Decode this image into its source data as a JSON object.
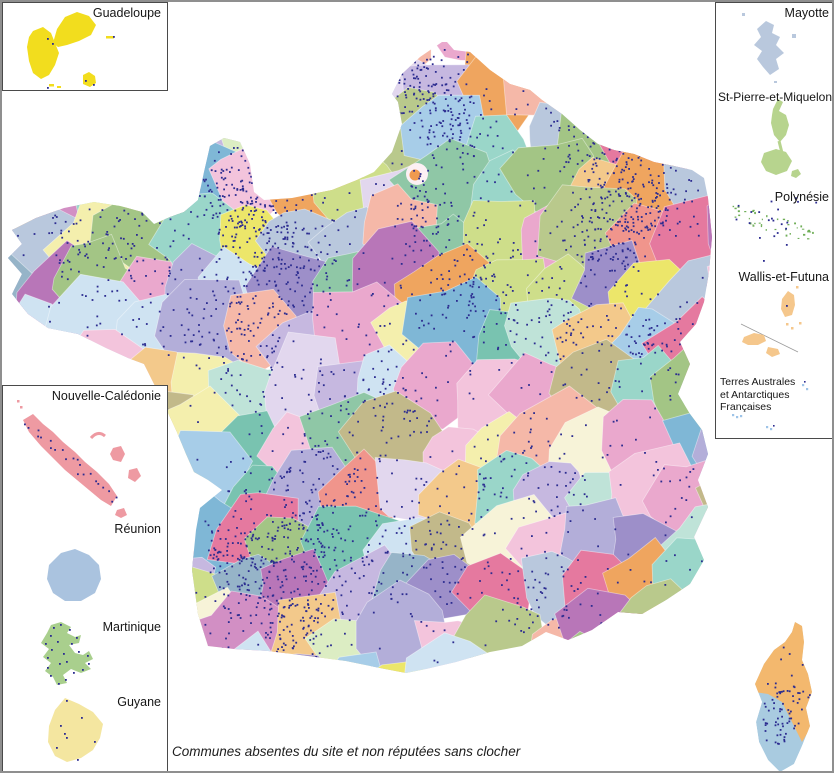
{
  "caption": "Communes absentes du site et non réputées sans clocher",
  "insets": {
    "guadeloupe": {
      "label": "Guadeloupe"
    },
    "mayotte": {
      "label": "Mayotte"
    },
    "spm": {
      "label": "St-Pierre-et-Miquelon"
    },
    "polynesie": {
      "label": "Polynésie"
    },
    "wallis": {
      "label": "Wallis-et-Futuna"
    },
    "taaf": {
      "lines": [
        "Terres Australes",
        "et Antarctiques",
        "Françaises"
      ]
    },
    "nouvelle_caledonie": {
      "label": "Nouvelle-Calédonie"
    },
    "reunion": {
      "label": "Réunion"
    },
    "martinique": {
      "label": "Martinique"
    },
    "guyane": {
      "label": "Guyane"
    }
  },
  "colors": {
    "dot": "#2c2c90",
    "guadeloupe": "#f2dd1e",
    "mayotte": "#b9c8dd",
    "spm": "#b7d48e",
    "polynesie_land": "#6fae57",
    "wallis": "#f5c78c",
    "taaf_land": "#9ec4e8",
    "nouvelle_caledonie": "#ee9aa2",
    "reunion": "#aac3df",
    "martinique": "#a9cf8d",
    "guyane": "#f4e6a0",
    "corse_nord": "#f3b86e",
    "corse_sud": "#a9cbe0",
    "paris_ring": "#fdf0f4",
    "paris_center": "#f09a50",
    "palette": [
      "#a3c585",
      "#b9c98c",
      "#8fc7a6",
      "#79c3b0",
      "#9ad6c9",
      "#bfe3d8",
      "#7fb7d6",
      "#a7cde8",
      "#cfe3f2",
      "#b9c8dd",
      "#b3aed9",
      "#9d8fc9",
      "#c6b8e0",
      "#e2d7ee",
      "#b876b8",
      "#d28fc4",
      "#eaa8cd",
      "#f3c4dc",
      "#e5799f",
      "#f0958c",
      "#f5b8a8",
      "#efa55f",
      "#f3c98b",
      "#ece66a",
      "#f4efad",
      "#cede8a",
      "#dcedc3",
      "#f7f3d8",
      "#c2b98a",
      "#96b4c8"
    ]
  }
}
